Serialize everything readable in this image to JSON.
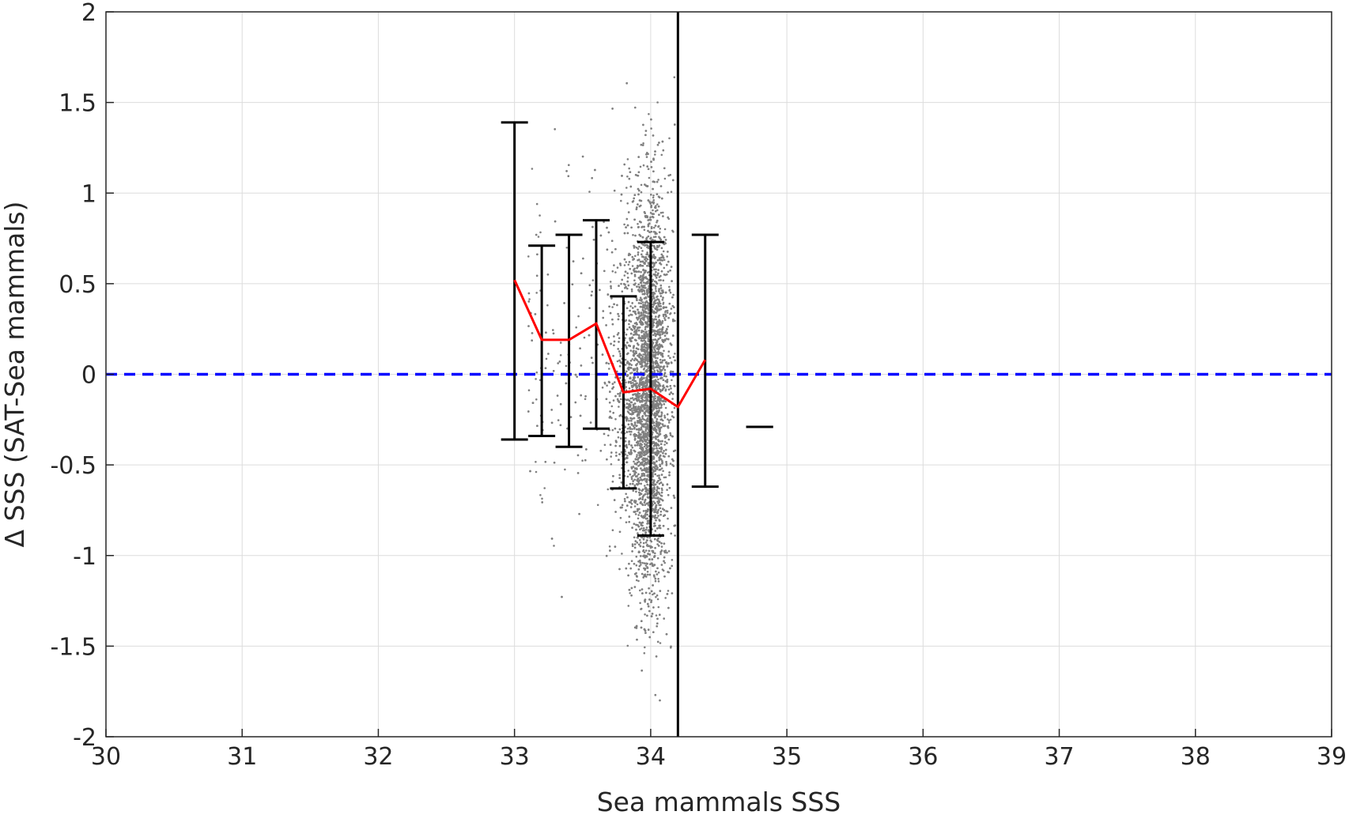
{
  "chart_data": {
    "type": "scatter",
    "xlabel": "Sea mammals SSS",
    "ylabel": "Δ SSS (SAT-Sea mammals)",
    "xlim": [
      30,
      39
    ],
    "ylim": [
      -2,
      2
    ],
    "x_ticks": [
      30,
      31,
      32,
      33,
      34,
      35,
      36,
      37,
      38,
      39
    ],
    "y_ticks": [
      -2,
      -1.5,
      -1,
      -0.5,
      0,
      0.5,
      1,
      1.5,
      2
    ],
    "grid": true,
    "scatter": {
      "color": "#808080",
      "center_x": 33.9,
      "center_y": -0.1,
      "description_points": 6000
    },
    "mean_line": {
      "color": "#ff0000",
      "x": [
        33.0,
        33.2,
        33.4,
        33.6,
        33.8,
        34.0,
        34.2,
        34.4
      ],
      "y": [
        0.52,
        0.19,
        0.19,
        0.28,
        -0.1,
        -0.08,
        -0.18,
        0.08
      ]
    },
    "error_bars": {
      "color": "#000000",
      "items": [
        {
          "x": 33.0,
          "low": -0.36,
          "high": 1.39
        },
        {
          "x": 33.2,
          "low": -0.34,
          "high": 0.71
        },
        {
          "x": 33.4,
          "low": -0.4,
          "high": 0.77
        },
        {
          "x": 33.6,
          "low": -0.3,
          "high": 0.85
        },
        {
          "x": 33.8,
          "low": -0.63,
          "high": 0.43
        },
        {
          "x": 34.0,
          "low": -0.89,
          "high": 0.73
        },
        {
          "x": 34.4,
          "low": -0.62,
          "high": 0.77
        },
        {
          "x": 34.8,
          "low": -0.29,
          "high": -0.29
        }
      ]
    },
    "zero_line": {
      "y": 0,
      "color": "#0000ff",
      "style": "dashed"
    },
    "vertical_line": {
      "x": 34.2,
      "color": "#000000"
    }
  }
}
